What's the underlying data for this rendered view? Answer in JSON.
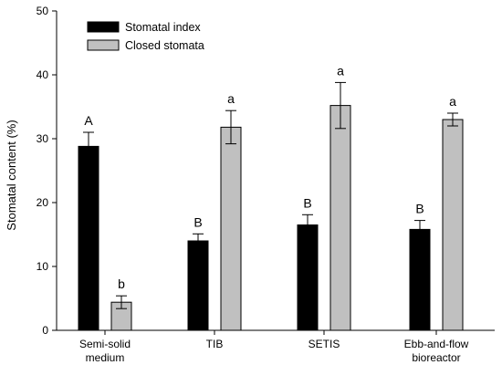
{
  "chart_data": {
    "type": "bar",
    "title": "",
    "xlabel": "",
    "ylabel": "Stomatal content (%)",
    "ylim": [
      0,
      50
    ],
    "yticks": [
      0,
      10,
      20,
      30,
      40,
      50
    ],
    "grid": false,
    "legend_position": "top-left",
    "categories": [
      [
        "Semi-solid",
        "medium"
      ],
      [
        "TIB"
      ],
      [
        "SETIS"
      ],
      [
        "Ebb-and-flow",
        "bioreactor"
      ]
    ],
    "series": [
      {
        "name": "Stomatal index",
        "color": "#000000",
        "values": [
          28.8,
          14.0,
          16.5,
          15.8
        ],
        "errors": [
          2.2,
          1.1,
          1.6,
          1.4
        ],
        "labels": [
          "A",
          "B",
          "B",
          "B"
        ]
      },
      {
        "name": "Closed stomata",
        "color": "#c0c0c0",
        "values": [
          4.4,
          31.8,
          35.2,
          33.0
        ],
        "errors": [
          1.0,
          2.6,
          3.6,
          1.0
        ],
        "labels": [
          "b",
          "a",
          "a",
          "a"
        ]
      }
    ]
  }
}
